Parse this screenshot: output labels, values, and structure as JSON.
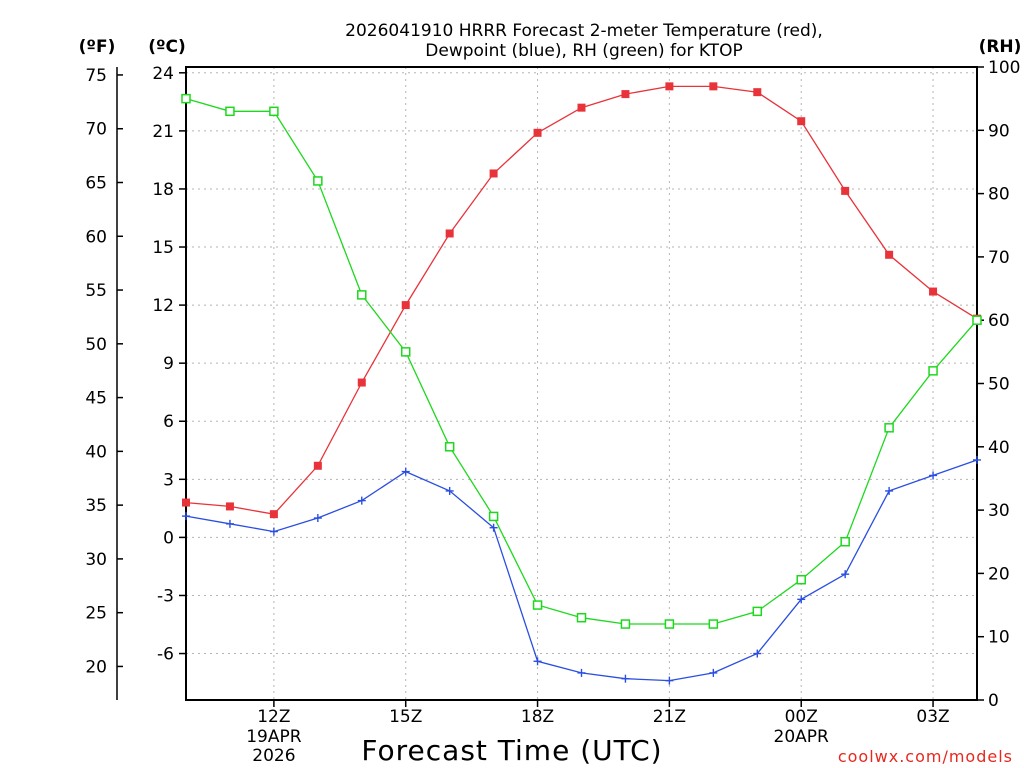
{
  "chart_data": {
    "type": "line",
    "title": [
      "2026041910 HRRR Forecast 2-meter Temperature (red),",
      "Dewpoint (blue), RH (green) for KTOP"
    ],
    "xlabel": "Forecast Time (UTC)",
    "credit": "coolwx.com/models",
    "units": {
      "fahrenheit": "(ºF)",
      "celsius": "(ºC)",
      "rh": "(RH)"
    },
    "x_hours_utc": [
      10,
      11,
      12,
      13,
      14,
      15,
      16,
      17,
      18,
      19,
      20,
      21,
      22,
      23,
      24,
      25,
      26,
      27,
      28
    ],
    "x_range": [
      10,
      28
    ],
    "x_ticks": [
      {
        "hour": 12,
        "label": "12Z",
        "sub": [
          "19APR",
          "2026"
        ]
      },
      {
        "hour": 15,
        "label": "15Z",
        "sub": []
      },
      {
        "hour": 18,
        "label": "18Z",
        "sub": []
      },
      {
        "hour": 21,
        "label": "21Z",
        "sub": []
      },
      {
        "hour": 24,
        "label": "00Z",
        "sub": [
          "20APR"
        ]
      },
      {
        "hour": 27,
        "label": "03Z",
        "sub": []
      }
    ],
    "celsius_axis": {
      "ylim": [
        -8.4,
        24.3
      ],
      "ticks": [
        "24",
        "21",
        "18",
        "15",
        "12",
        "9",
        "6",
        "3",
        "0",
        "-3",
        "-6"
      ]
    },
    "fahrenheit_axis": {
      "ticks": [
        "75",
        "70",
        "65",
        "60",
        "55",
        "50",
        "45",
        "40",
        "35",
        "30",
        "25",
        "20"
      ]
    },
    "rh_axis": {
      "ylim": [
        0,
        100
      ],
      "ticks": [
        "100",
        "90",
        "80",
        "70",
        "60",
        "50",
        "40",
        "30",
        "20",
        "10",
        "0"
      ]
    },
    "series": [
      {
        "name": "2-meter Temperature",
        "axis": "celsius",
        "color": "#e8333a",
        "marker": "filled-square",
        "values": [
          1.8,
          1.6,
          1.2,
          3.7,
          8.0,
          12.0,
          15.7,
          18.8,
          20.9,
          22.2,
          22.9,
          23.3,
          23.3,
          23.0,
          21.5,
          17.9,
          14.6,
          12.7,
          11.3
        ]
      },
      {
        "name": "Dewpoint",
        "axis": "celsius",
        "color": "#2a4ee0",
        "marker": "plus",
        "values": [
          1.1,
          0.7,
          0.3,
          1.0,
          1.9,
          3.4,
          2.4,
          0.5,
          -6.4,
          -7.0,
          -7.3,
          -7.4,
          -7.0,
          -6.0,
          -3.2,
          -1.9,
          2.4,
          3.2,
          4.0
        ]
      },
      {
        "name": "RH",
        "axis": "rh",
        "color": "#1ed81e",
        "marker": "open-square",
        "values": [
          95,
          93,
          93,
          82,
          64,
          55,
          40,
          29,
          15,
          13,
          12,
          12,
          12,
          14,
          19,
          25,
          43,
          52,
          60
        ]
      }
    ]
  }
}
